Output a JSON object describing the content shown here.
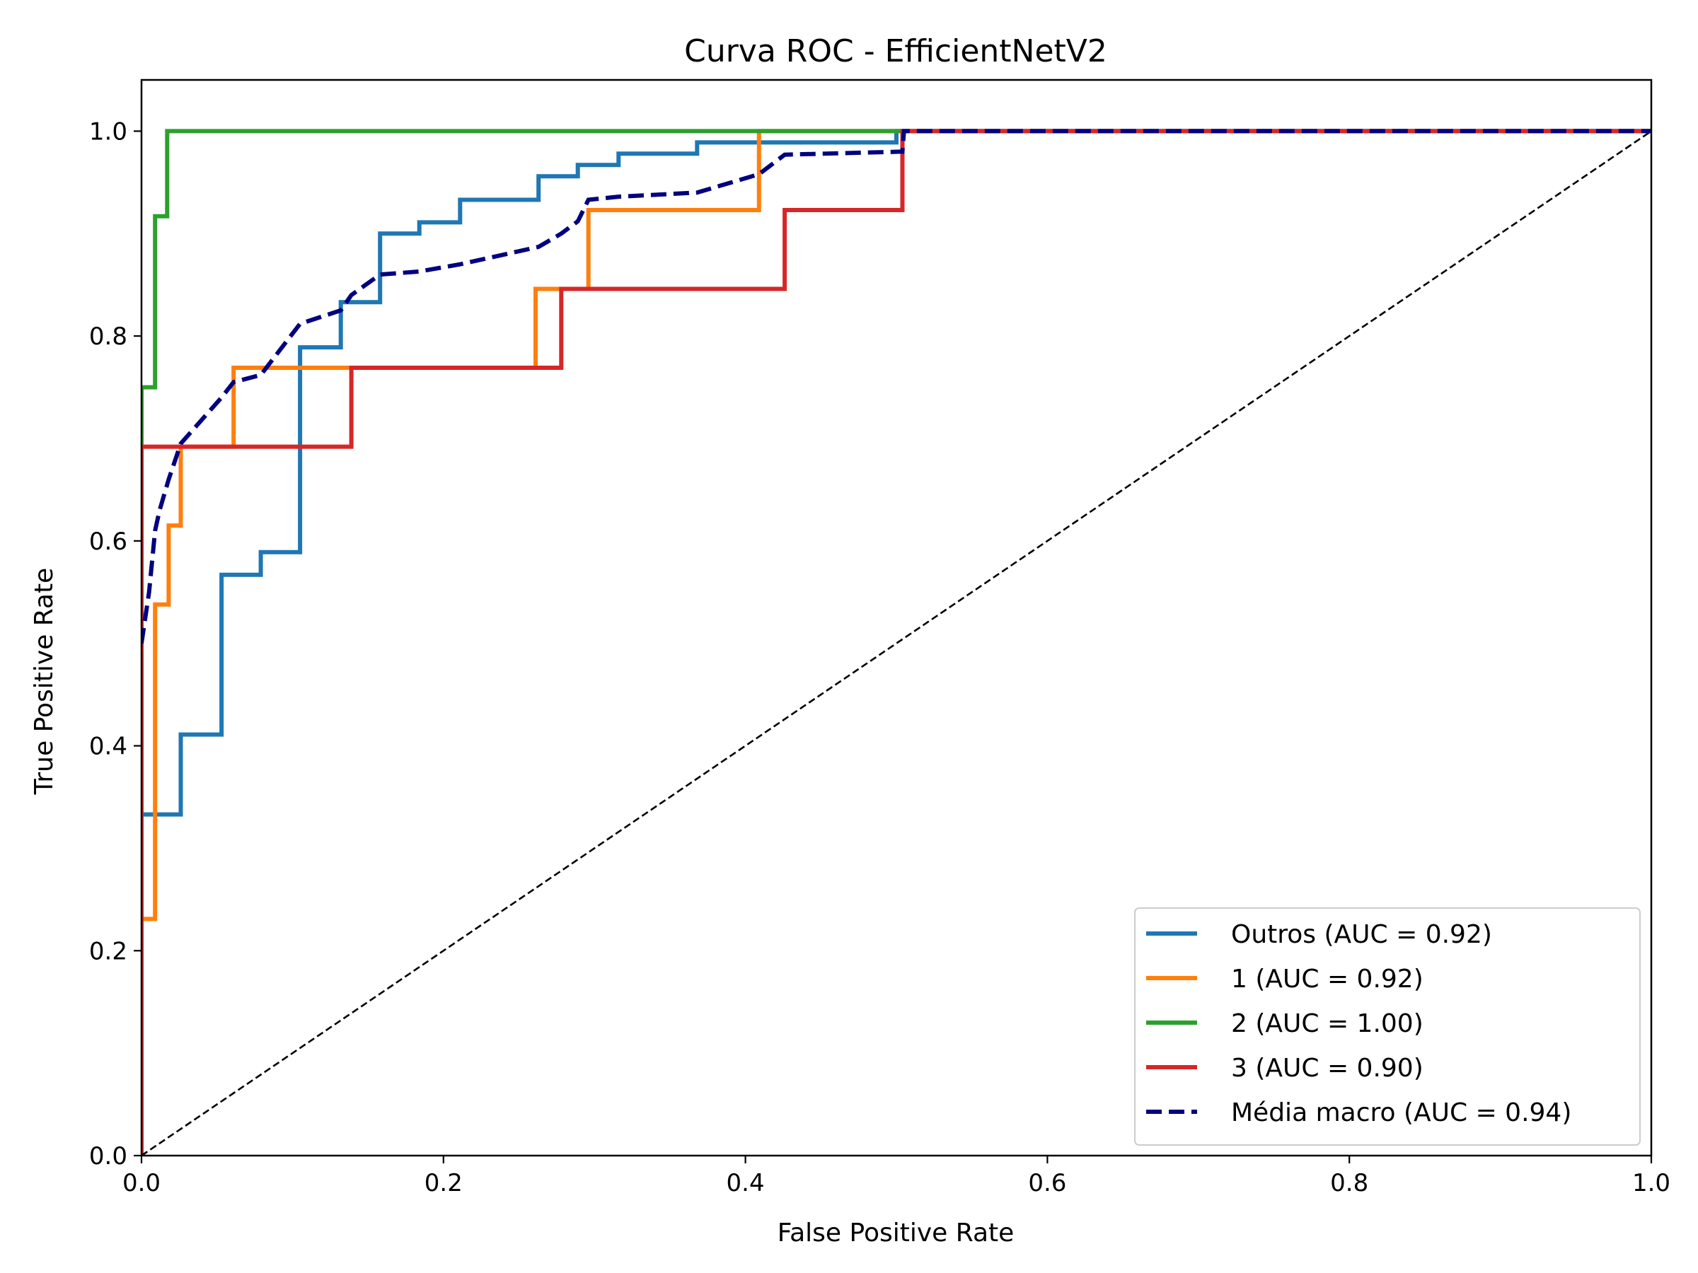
{
  "chart_data": {
    "type": "line",
    "title": "Curva ROC - EfficientNetV2",
    "xlabel": "False Positive Rate",
    "ylabel": "True Positive Rate",
    "xlim": [
      0.0,
      1.0
    ],
    "ylim": [
      0.0,
      1.05
    ],
    "xticks": [
      "0.0",
      "0.2",
      "0.4",
      "0.6",
      "0.8",
      "1.0"
    ],
    "yticks": [
      "0.0",
      "0.2",
      "0.4",
      "0.6",
      "0.8",
      "1.0"
    ],
    "grid": false,
    "legend_position": "lower right",
    "series": [
      {
        "name": "Outros (AUC = 0.92)",
        "color": "#1f77b4",
        "style": "solid",
        "x": [
          0,
          0,
          0.026,
          0.026,
          0.053,
          0.053,
          0.079,
          0.079,
          0.105,
          0.105,
          0.132,
          0.132,
          0.158,
          0.158,
          0.184,
          0.184,
          0.211,
          0.211,
          0.263,
          0.263,
          0.289,
          0.289,
          0.316,
          0.316,
          0.368,
          0.368,
          0.5,
          0.5,
          1.0
        ],
        "y": [
          0,
          0.333,
          0.333,
          0.411,
          0.411,
          0.567,
          0.567,
          0.589,
          0.589,
          0.789,
          0.789,
          0.833,
          0.833,
          0.9,
          0.9,
          0.911,
          0.911,
          0.933,
          0.933,
          0.956,
          0.956,
          0.967,
          0.967,
          0.978,
          0.978,
          0.989,
          0.989,
          1.0,
          1.0
        ]
      },
      {
        "name": "1 (AUC = 0.92)",
        "color": "#ff7f0e",
        "style": "solid",
        "x": [
          0,
          0,
          0.009,
          0.009,
          0.018,
          0.018,
          0.026,
          0.026,
          0.061,
          0.061,
          0.261,
          0.261,
          0.296,
          0.296,
          0.409,
          0.409,
          1.0
        ],
        "y": [
          0,
          0.231,
          0.231,
          0.538,
          0.538,
          0.615,
          0.615,
          0.692,
          0.692,
          0.769,
          0.769,
          0.846,
          0.846,
          0.923,
          0.923,
          1.0,
          1.0
        ]
      },
      {
        "name": "2 (AUC = 1.00)",
        "color": "#2ca02c",
        "style": "solid",
        "x": [
          0,
          0,
          0.009,
          0.009,
          0.017,
          0.017,
          1.0
        ],
        "y": [
          0,
          0.75,
          0.75,
          0.917,
          0.917,
          1.0,
          1.0
        ]
      },
      {
        "name": "3 (AUC = 0.90)",
        "color": "#d62728",
        "style": "solid",
        "x": [
          0,
          0,
          0.139,
          0.139,
          0.278,
          0.278,
          0.426,
          0.426,
          0.504,
          0.504,
          1.0
        ],
        "y": [
          0,
          0.692,
          0.692,
          0.769,
          0.769,
          0.846,
          0.846,
          0.923,
          0.923,
          1.0,
          1.0
        ]
      },
      {
        "name": "Média macro (AUC = 0.94)",
        "color": "#000080",
        "style": "dashed",
        "x": [
          0,
          0.005,
          0.009,
          0.012,
          0.018,
          0.026,
          0.035,
          0.053,
          0.061,
          0.079,
          0.105,
          0.132,
          0.139,
          0.158,
          0.184,
          0.211,
          0.263,
          0.278,
          0.289,
          0.296,
          0.316,
          0.368,
          0.409,
          0.426,
          0.504,
          0.505,
          1.0
        ],
        "y": [
          0.5,
          0.55,
          0.61,
          0.63,
          0.66,
          0.695,
          0.71,
          0.74,
          0.755,
          0.762,
          0.812,
          0.825,
          0.84,
          0.86,
          0.863,
          0.87,
          0.887,
          0.9,
          0.912,
          0.933,
          0.936,
          0.94,
          0.958,
          0.977,
          0.98,
          1.0,
          1.0
        ]
      },
      {
        "name": "",
        "color": "#000000",
        "style": "dashed-thin",
        "x": [
          0,
          1.0
        ],
        "y": [
          0,
          1.0
        ]
      }
    ]
  }
}
